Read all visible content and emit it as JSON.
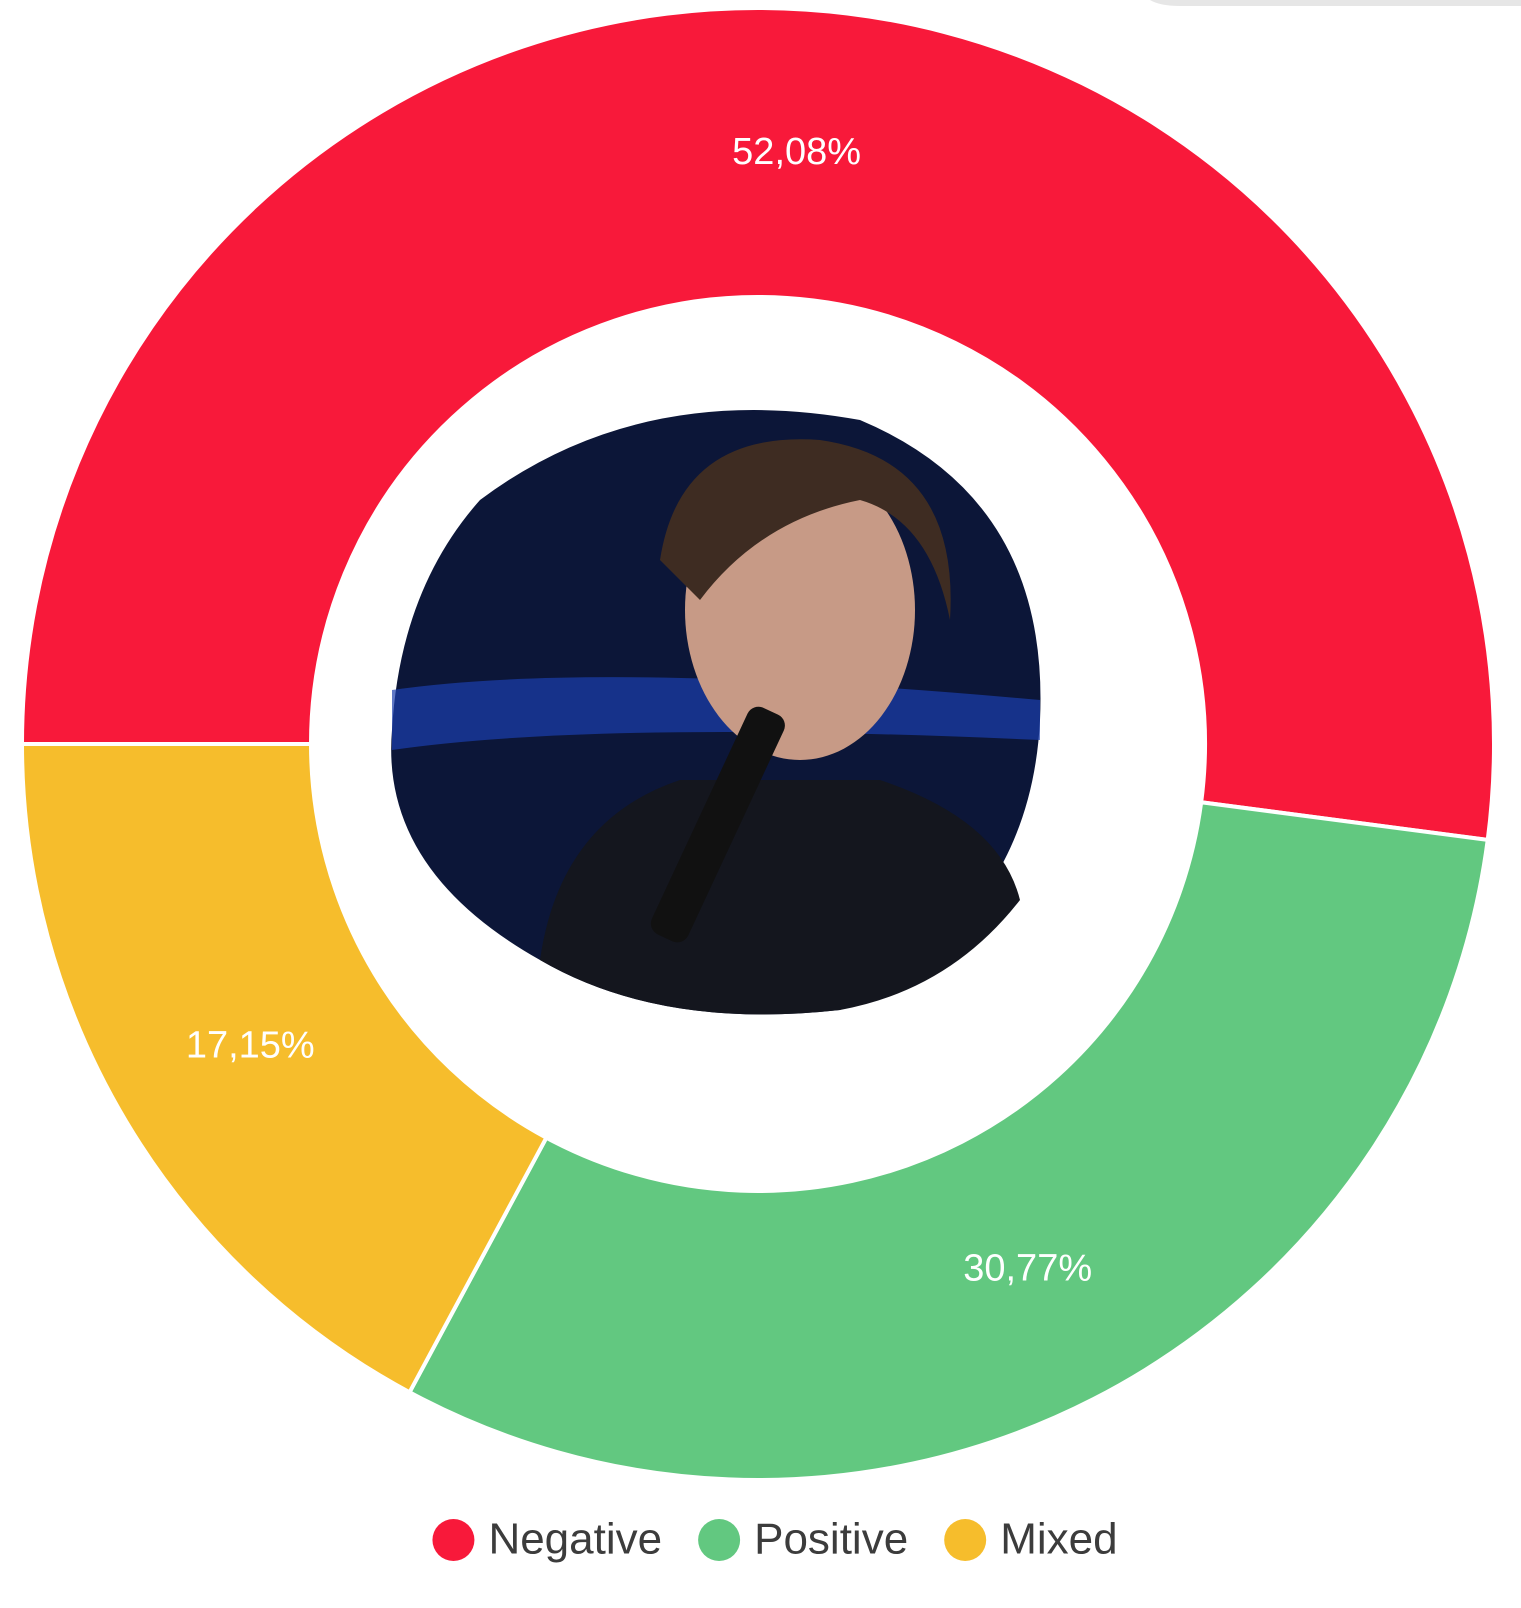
{
  "chart_data": {
    "type": "donut",
    "categories": [
      "Negative",
      "Positive",
      "Mixed"
    ],
    "values": [
      52.08,
      30.77,
      17.15
    ],
    "value_labels": [
      "52,08%",
      "30,77%",
      "17,15%"
    ],
    "colors": [
      "#f8193a",
      "#62c880",
      "#f6bd2c"
    ],
    "legend": "bottom"
  }
}
